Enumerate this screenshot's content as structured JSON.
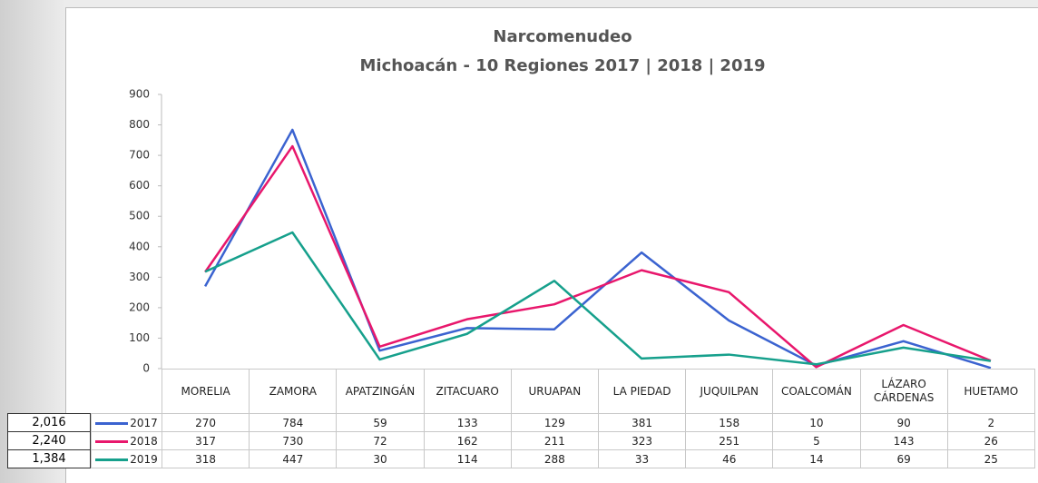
{
  "chart_data": {
    "type": "line",
    "title": "Narcomenudeo",
    "subtitle": "Michoacán - 10 Regiones 2017 | 2018 | 2019",
    "categories": [
      "MORELIA",
      "ZAMORA",
      "APATZINGÁN",
      "ZITACUARO",
      "URUAPAN",
      "LA PIEDAD",
      "JUQUILPAN",
      "COALCOMÁN",
      "LÁZARO CÁRDENAS",
      "HUETAMO"
    ],
    "series": [
      {
        "name": "2017",
        "color": "#3b63d0",
        "values": [
          270,
          784,
          59,
          133,
          129,
          381,
          158,
          10,
          90,
          2
        ]
      },
      {
        "name": "2018",
        "color": "#e8176c",
        "values": [
          317,
          730,
          72,
          162,
          211,
          323,
          251,
          5,
          143,
          26
        ]
      },
      {
        "name": "2019",
        "color": "#16a08c",
        "values": [
          318,
          447,
          30,
          114,
          288,
          33,
          46,
          14,
          69,
          25
        ]
      }
    ],
    "totals": [
      {
        "value": 2016,
        "label": "2,016"
      },
      {
        "value": 2240,
        "label": "2,240"
      },
      {
        "value": 1384,
        "label": "1,384"
      }
    ],
    "ylim": [
      0,
      900
    ],
    "yticks": [
      0,
      100,
      200,
      300,
      400,
      500,
      600,
      700,
      800,
      900
    ],
    "grid": false
  }
}
